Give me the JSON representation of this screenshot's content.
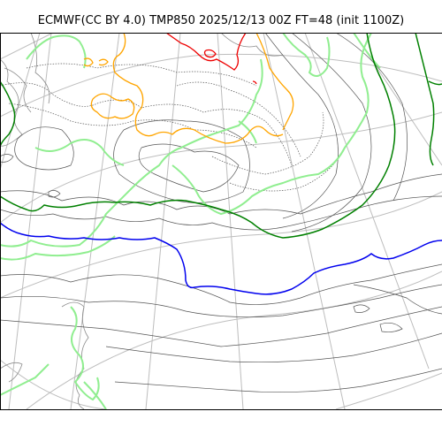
{
  "header": {
    "title": "ECMWF(CC BY 4.0) TMP850 2025/12/13 00Z FT=48 (init 1100Z)"
  },
  "map": {
    "model": "ECMWF",
    "license": "CC BY 4.0",
    "field": "TMP850",
    "valid_time": "2025/12/13 00Z",
    "forecast_hour": 48,
    "init": "1100Z",
    "projection": "polar stereographic",
    "colors": {
      "coastline": "#8c8c8c",
      "graticule": "#bdbdbd",
      "isotherm_thin": "#555555",
      "isotherm_light_green": "#90ee90",
      "isotherm_green": "#008000",
      "isotherm_blue": "#0000ee",
      "isotherm_orange": "#ffa500",
      "isotherm_red": "#ee0000"
    },
    "layers": [
      {
        "id": "graticule",
        "color": "graticule"
      },
      {
        "id": "coastline",
        "color": "coastline"
      },
      {
        "id": "thin-isotherms",
        "color": "isotherm_thin"
      },
      {
        "id": "light-green-isotherms",
        "color": "isotherm_light_green"
      },
      {
        "id": "green-isotherm",
        "color": "isotherm_green"
      },
      {
        "id": "blue-isotherm",
        "color": "isotherm_blue"
      },
      {
        "id": "orange-isotherm",
        "color": "isotherm_orange"
      },
      {
        "id": "red-isotherm",
        "color": "isotherm_red"
      }
    ]
  }
}
